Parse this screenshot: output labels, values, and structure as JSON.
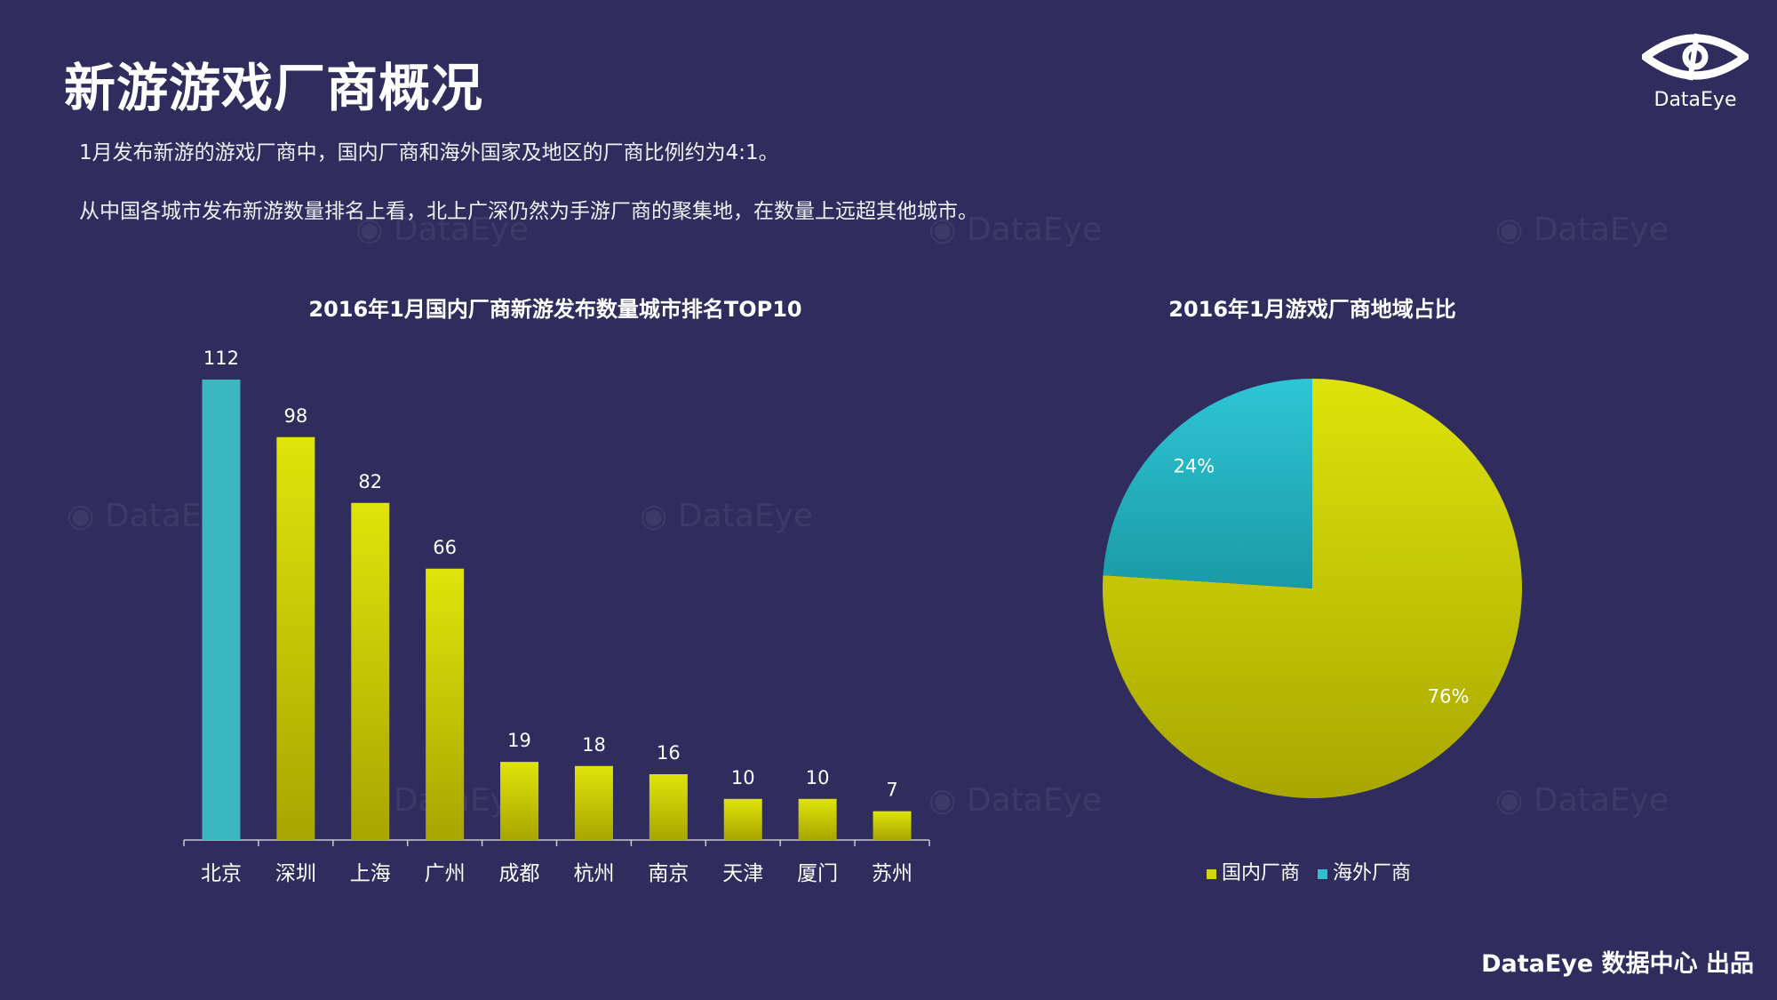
{
  "title": "新游游戏厂商概况",
  "subtitles": [
    "1月发布新游的游戏厂商中，国内厂商和海外国家及地区的厂商比例约为4:1。",
    "从中国各城市发布新游数量排名上看，北上广深仍然为手游厂商的聚集地，在数量上远超其他城市。"
  ],
  "logo": {
    "text": "DataEye",
    "icon": "eye-logo-icon"
  },
  "watermark": "DataEye",
  "footer": "DataEye 数据中心 出品",
  "colors": {
    "background": "#302c5d",
    "teal": "#3bb7c2",
    "yellow_top": "#dfe40a",
    "yellow_bottom": "#a8a600"
  },
  "chart_data": [
    {
      "type": "bar",
      "title": "2016年1月国内厂商新游发布数量城市排名TOP10",
      "categories": [
        "北京",
        "深圳",
        "上海",
        "广州",
        "成都",
        "杭州",
        "南京",
        "天津",
        "厦门",
        "苏州"
      ],
      "values": [
        112,
        98,
        82,
        66,
        19,
        18,
        16,
        10,
        10,
        7
      ],
      "bar_colors": [
        "teal",
        "yellow",
        "yellow",
        "yellow",
        "yellow",
        "yellow",
        "yellow",
        "yellow",
        "yellow",
        "yellow"
      ],
      "data_labels": true,
      "grid": false,
      "ylim": [
        0,
        112
      ]
    },
    {
      "type": "pie",
      "title": "2016年1月游戏厂商地域占比",
      "slices": [
        {
          "label": "国内厂商",
          "value": 76,
          "display": "76%",
          "color": "yellow"
        },
        {
          "label": "海外厂商",
          "value": 24,
          "display": "24%",
          "color": "teal"
        }
      ],
      "legend": "bottom"
    }
  ]
}
